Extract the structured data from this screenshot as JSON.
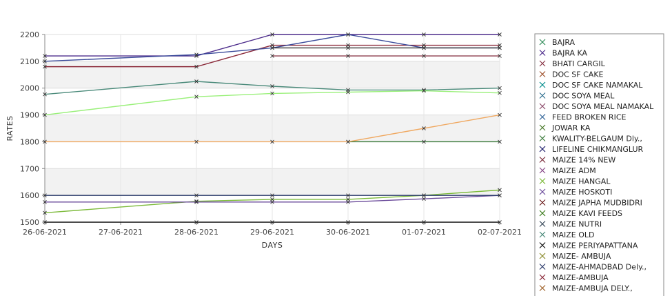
{
  "chart_data": {
    "type": "line",
    "xlabel": "DAYS",
    "ylabel": "RATES",
    "x": [
      "26-06-2021",
      "27-06-2021",
      "28-06-2021",
      "29-06-2021",
      "30-06-2021",
      "01-07-2021",
      "02-07-2021"
    ],
    "ylim": [
      1500,
      2200
    ],
    "yticks": [
      1500,
      1600,
      1700,
      1800,
      1900,
      2000,
      2100,
      2200
    ],
    "grid": true,
    "legend_position": "right",
    "series": [
      {
        "name": "BAJRA",
        "color": "#2e8b57",
        "values": [
          null,
          null,
          null,
          null,
          null,
          null,
          null
        ]
      },
      {
        "name": "BAJRA KA",
        "color": "#4b2a8a",
        "values": [
          2120,
          null,
          2120,
          2200,
          2200,
          2200,
          2200
        ]
      },
      {
        "name": "BHATI CARGIL",
        "color": "#8b3a4a",
        "values": [
          null,
          null,
          null,
          2120,
          2120,
          2120,
          2120
        ]
      },
      {
        "name": "DOC SF CAKE",
        "color": "#a0522d",
        "values": [
          null,
          null,
          null,
          null,
          null,
          null,
          null
        ]
      },
      {
        "name": "DOC SF CAKE NAMAKAL",
        "color": "#008b8b",
        "values": [
          null,
          null,
          null,
          null,
          null,
          null,
          null
        ]
      },
      {
        "name": "DOC SOYA MEAL",
        "color": "#2f6f8f",
        "values": [
          null,
          null,
          null,
          null,
          null,
          null,
          null
        ]
      },
      {
        "name": "DOC SOYA MEAL NAMAKAL",
        "color": "#8b4a6a",
        "values": [
          null,
          null,
          null,
          null,
          null,
          null,
          null
        ]
      },
      {
        "name": "FEED BROKEN RICE",
        "color": "#336699",
        "values": [
          null,
          null,
          null,
          null,
          null,
          null,
          null
        ]
      },
      {
        "name": "JOWAR KA",
        "color": "#4a7a2a",
        "values": [
          null,
          null,
          null,
          null,
          null,
          null,
          null
        ]
      },
      {
        "name": "KWALITY-BELGAUM Dly.,",
        "color": "#3a7a3a",
        "values": [
          null,
          null,
          null,
          null,
          1800,
          1800,
          1800
        ]
      },
      {
        "name": "LIFELINE CHIKMANGLUR",
        "color": "#1a1a6a",
        "values": [
          null,
          null,
          null,
          null,
          null,
          null,
          null
        ]
      },
      {
        "name": "MAIZE 14% NEW",
        "color": "#7a2a3a",
        "values": [
          null,
          null,
          null,
          null,
          null,
          null,
          null
        ]
      },
      {
        "name": "MAIZE ADM",
        "color": "#8a4a8a",
        "values": [
          null,
          null,
          null,
          null,
          null,
          null,
          null
        ]
      },
      {
        "name": "MAIZE HANGAL",
        "color": "#7cba3a",
        "values": [
          1535,
          null,
          1578,
          1585,
          1585,
          1600,
          1620
        ]
      },
      {
        "name": "MAIZE HOSKOTI",
        "color": "#6a4a9a",
        "values": [
          1575,
          null,
          1575,
          1575,
          1575,
          1587,
          1600
        ]
      },
      {
        "name": "MAIZE JAPHA MUDBIDRI",
        "color": "#6a1a1a",
        "values": [
          null,
          null,
          null,
          null,
          null,
          null,
          null
        ]
      },
      {
        "name": "MAIZE KAVI FEEDS",
        "color": "#3a7a1a",
        "values": [
          null,
          null,
          null,
          null,
          null,
          null,
          null
        ]
      },
      {
        "name": "MAIZE NUTRI",
        "color": "#3a4a5a",
        "values": [
          null,
          null,
          null,
          null,
          null,
          null,
          null
        ]
      },
      {
        "name": "MAIZE OLD",
        "color": "#4a8a7a",
        "values": [
          1977,
          null,
          2025,
          2007,
          1993,
          1993,
          2000
        ]
      },
      {
        "name": "MAIZE PERIYAPATTANA",
        "color": "#111111",
        "values": [
          1500,
          null,
          1500,
          1500,
          1500,
          1500,
          1500
        ]
      },
      {
        "name": "MAIZE- AMBUJA",
        "color": "#8a8a2a",
        "values": [
          null,
          null,
          null,
          null,
          null,
          null,
          null
        ]
      },
      {
        "name": "MAIZE-AHMADBAD Dely.,",
        "color": "#2a3a6a",
        "values": [
          1600,
          null,
          1600,
          1600,
          1600,
          1600,
          1600
        ]
      },
      {
        "name": "MAIZE-AMBUJA",
        "color": "#8b2a3a",
        "values": [
          2080,
          null,
          2080,
          2160,
          2160,
          2160,
          2160
        ]
      },
      {
        "name": "MAIZE-AMBUJA DELY.,",
        "color": "#a0622a",
        "values": [
          null,
          null,
          null,
          null,
          null,
          null,
          null
        ]
      },
      {
        "color": "#f0a860",
        "values": [
          1800,
          null,
          1800,
          1800,
          1800,
          1850,
          1900
        ]
      },
      {
        "color": "#9af07a",
        "values": [
          1900,
          null,
          1968,
          1980,
          1985,
          1990,
          1982
        ]
      },
      {
        "color": "#3a4a9a",
        "values": [
          2100,
          null,
          2125,
          2150,
          2200,
          2150,
          2150
        ]
      },
      {
        "color": "#333333",
        "values": [
          null,
          null,
          null,
          2150,
          2150,
          2150,
          2150
        ]
      }
    ]
  }
}
